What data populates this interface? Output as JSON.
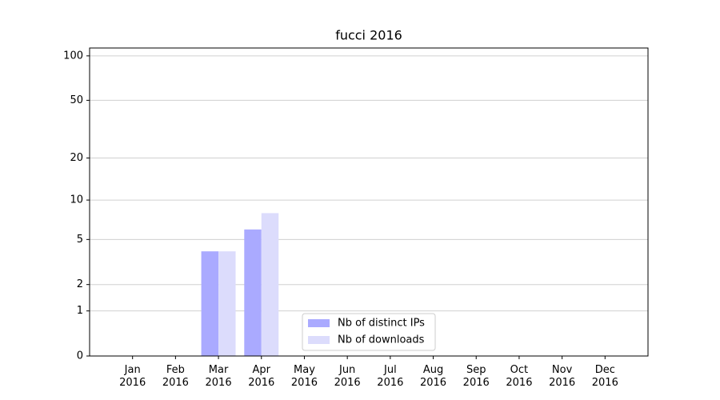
{
  "chart_data": {
    "type": "bar",
    "title": "fucci 2016",
    "categories": [
      "Jan 2016",
      "Feb 2016",
      "Mar 2016",
      "Apr 2016",
      "May 2016",
      "Jun 2016",
      "Jul 2016",
      "Aug 2016",
      "Sep 2016",
      "Oct 2016",
      "Nov 2016",
      "Dec 2016"
    ],
    "series": [
      {
        "name": "Nb of distinct IPs",
        "color": "#aaaaff",
        "values": [
          0,
          0,
          4,
          6,
          0,
          0,
          0,
          0,
          0,
          0,
          0,
          0
        ]
      },
      {
        "name": "Nb of downloads",
        "color": "#dcdcfc",
        "values": [
          0,
          0,
          4,
          8,
          0,
          0,
          0,
          0,
          0,
          0,
          0,
          0
        ]
      }
    ],
    "yscale": "log1p",
    "ylim": [
      0,
      113
    ],
    "yticks": [
      0,
      1,
      2,
      5,
      10,
      20,
      50,
      100
    ],
    "grid": true,
    "legend": "lower center"
  }
}
